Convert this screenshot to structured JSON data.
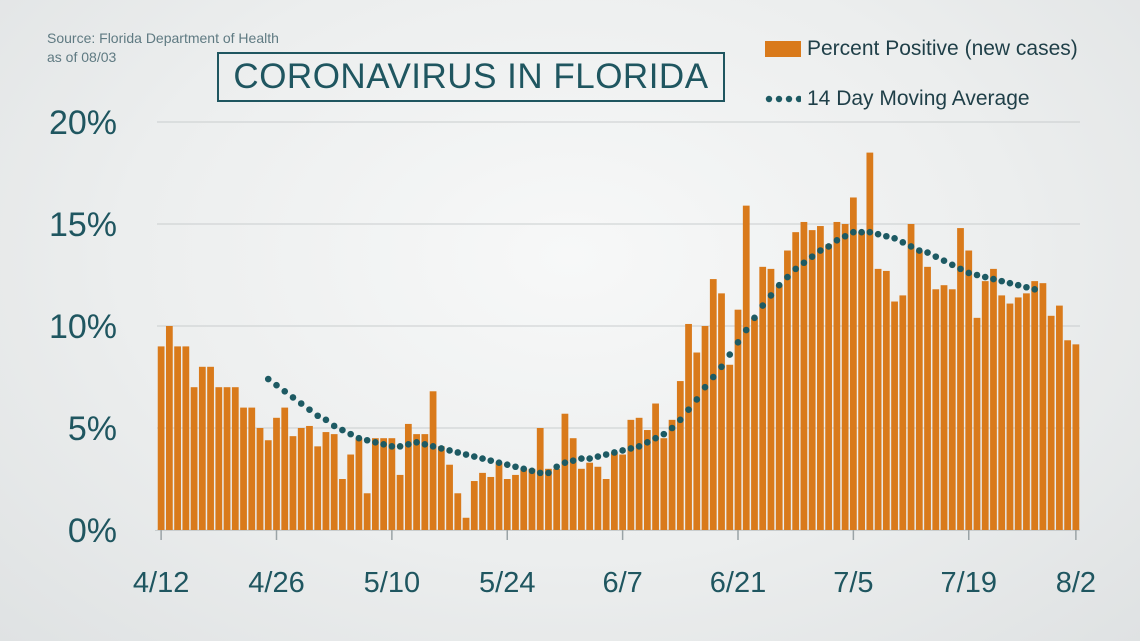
{
  "source": {
    "line1": "Source: Florida Department of Health",
    "line2": "as of 08/03"
  },
  "colors": {
    "bar": "#d97a1b",
    "dots": "#1d5a63",
    "text": "#1f5660"
  },
  "chart_data": {
    "type": "bar",
    "title": "CORONAVIRUS IN FLORIDA",
    "xlabel": "",
    "ylabel": "",
    "ylim": [
      0,
      20
    ],
    "y_ticks": [
      "0%",
      "5%",
      "10%",
      "15%",
      "20%"
    ],
    "x_ticks": [
      "4/12",
      "4/26",
      "5/10",
      "5/24",
      "6/7",
      "6/21",
      "7/5",
      "7/19",
      "8/2"
    ],
    "grid": true,
    "legend_position": "top-right",
    "x_start": "4/12",
    "x_end": "8/2",
    "series": [
      {
        "name": "Percent Positive (new cases)",
        "kind": "bar",
        "values": [
          9.0,
          10.0,
          9.0,
          9.0,
          7.0,
          8.0,
          8.0,
          7.0,
          7.0,
          7.0,
          6.0,
          6.0,
          5.0,
          4.4,
          5.5,
          6.0,
          4.6,
          5.0,
          5.1,
          4.1,
          4.8,
          4.7,
          2.5,
          3.7,
          4.5,
          1.8,
          4.5,
          4.5,
          4.5,
          2.7,
          5.2,
          4.7,
          4.7,
          6.8,
          4.1,
          3.2,
          1.8,
          0.6,
          2.4,
          2.8,
          2.6,
          3.3,
          2.5,
          2.7,
          3.0,
          3.0,
          5.0,
          3.0,
          3.0,
          5.7,
          4.5,
          3.0,
          3.3,
          3.1,
          2.5,
          3.8,
          3.7,
          5.4,
          5.5,
          4.9,
          6.2,
          4.5,
          5.4,
          7.3,
          10.1,
          8.7,
          10.0,
          12.3,
          11.6,
          8.1,
          10.8,
          15.9,
          10.4,
          12.9,
          12.8,
          12.0,
          13.7,
          14.6,
          15.1,
          14.7,
          14.9,
          14.0,
          15.1,
          15.0,
          16.3,
          14.6,
          18.5,
          12.8,
          12.7,
          11.2,
          11.5,
          15.0,
          13.7,
          12.9,
          11.8,
          12.0,
          11.8,
          14.8,
          13.7,
          10.4,
          12.2,
          12.8,
          11.5,
          11.1,
          11.4,
          11.6,
          12.2,
          12.1,
          10.5,
          11.0,
          9.3,
          9.1
        ]
      },
      {
        "name": "14 Day Moving Average",
        "kind": "dotted-line",
        "start_index": 13,
        "values": [
          7.4,
          7.1,
          6.8,
          6.5,
          6.2,
          5.9,
          5.6,
          5.4,
          5.1,
          4.9,
          4.7,
          4.5,
          4.4,
          4.3,
          4.2,
          4.1,
          4.1,
          4.2,
          4.3,
          4.2,
          4.1,
          4.0,
          3.9,
          3.8,
          3.7,
          3.6,
          3.5,
          3.4,
          3.3,
          3.2,
          3.1,
          3.0,
          2.9,
          2.8,
          2.8,
          3.1,
          3.3,
          3.4,
          3.5,
          3.5,
          3.6,
          3.7,
          3.8,
          3.9,
          4.0,
          4.1,
          4.3,
          4.5,
          4.7,
          5.0,
          5.4,
          5.9,
          6.4,
          7.0,
          7.5,
          8.0,
          8.6,
          9.2,
          9.8,
          10.4,
          11.0,
          11.5,
          12.0,
          12.4,
          12.8,
          13.1,
          13.4,
          13.7,
          13.9,
          14.2,
          14.4,
          14.6,
          14.6,
          14.6,
          14.5,
          14.4,
          14.3,
          14.1,
          13.9,
          13.7,
          13.6,
          13.4,
          13.2,
          13.0,
          12.8,
          12.6,
          12.5,
          12.4,
          12.3,
          12.2,
          12.1,
          12.0,
          11.9,
          11.8
        ]
      }
    ]
  }
}
